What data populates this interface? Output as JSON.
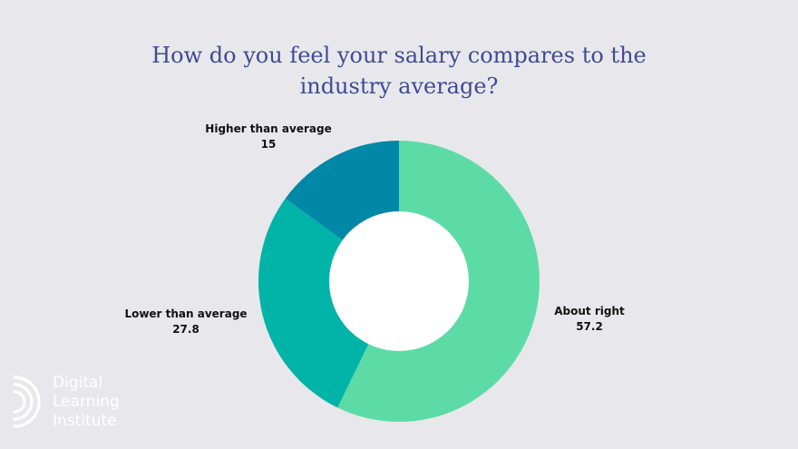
{
  "chart_data": {
    "type": "pie",
    "title": "How do you feel your salary compares to the industry average?",
    "donut": true,
    "categories": [
      "About right",
      "Lower than average",
      "Higher than average"
    ],
    "values": [
      57.2,
      27.8,
      15
    ],
    "value_labels": [
      "57.2",
      "27.8",
      "15"
    ],
    "colors": [
      "#5ddba6",
      "#02b3a8",
      "#0288a7"
    ],
    "legend": "none"
  },
  "logo": {
    "lines": [
      "Digital",
      "Learning",
      "Institute"
    ]
  },
  "colors": {
    "background": "#e8e8ec",
    "title": "#3f4b93",
    "hole": "#ffffff"
  }
}
